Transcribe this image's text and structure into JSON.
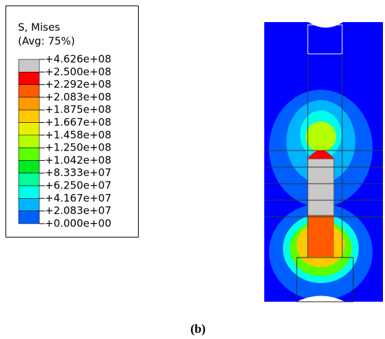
{
  "legend": {
    "title": "S, Mises",
    "subtitle": "(Avg: 75%)",
    "labels": [
      "+4.626e+08",
      "+2.500e+08",
      "+2.292e+08",
      "+2.083e+08",
      "+1.875e+08",
      "+1.667e+08",
      "+1.458e+08",
      "+1.250e+08",
      "+1.042e+08",
      "+8.333e+07",
      "+6.250e+07",
      "+4.167e+07",
      "+2.083e+07",
      "+0.000e+00"
    ],
    "colors": [
      "#c8c8c8",
      "#ff0000",
      "#ff5a00",
      "#ff9a00",
      "#ffc800",
      "#e8f000",
      "#b4ff00",
      "#5aff00",
      "#00ea20",
      "#00ff96",
      "#00ffe8",
      "#00b4ff",
      "#0060ff",
      "#0000ff"
    ]
  },
  "caption": "(b)"
}
